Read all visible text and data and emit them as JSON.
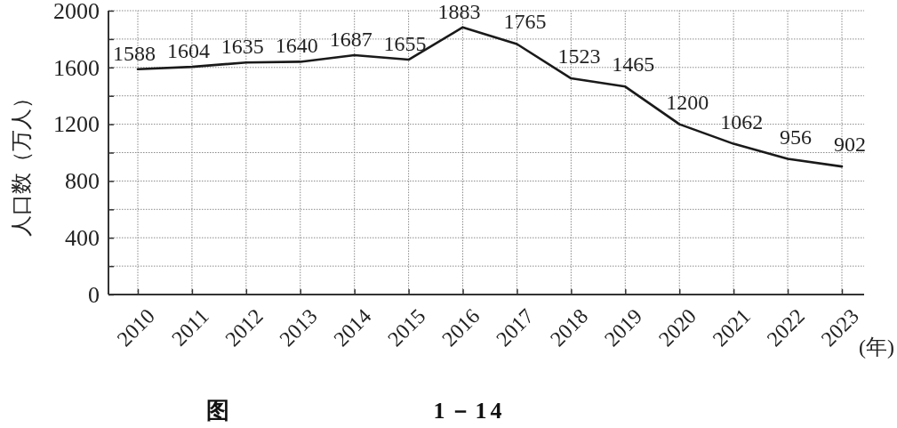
{
  "chart_data": {
    "type": "line",
    "xlabel": "(年)",
    "ylabel": "人口数（万人）",
    "categories": [
      "2010",
      "2011",
      "2012",
      "2013",
      "2014",
      "2015",
      "2016",
      "2017",
      "2018",
      "2019",
      "2020",
      "2021",
      "2022",
      "2023"
    ],
    "series": [
      {
        "color": "#1a1a1a",
        "values": [
          1588,
          1604,
          1635,
          1640,
          1687,
          1655,
          1883,
          1765,
          1523,
          1465,
          1200,
          1062,
          956,
          902
        ]
      }
    ],
    "ylim": [
      0,
      2000
    ],
    "yticks": [
      0,
      {
        "value": 200,
        "label": null
      },
      400,
      {
        "value": 600,
        "label": null
      },
      800,
      {
        "value": 1000,
        "label": null
      },
      1200,
      {
        "value": 1400,
        "label": null
      },
      1600,
      {
        "value": 1800,
        "label": null
      },
      2000
    ],
    "grid": true,
    "data_labels": true,
    "annotations": [
      "图 1－14"
    ]
  }
}
